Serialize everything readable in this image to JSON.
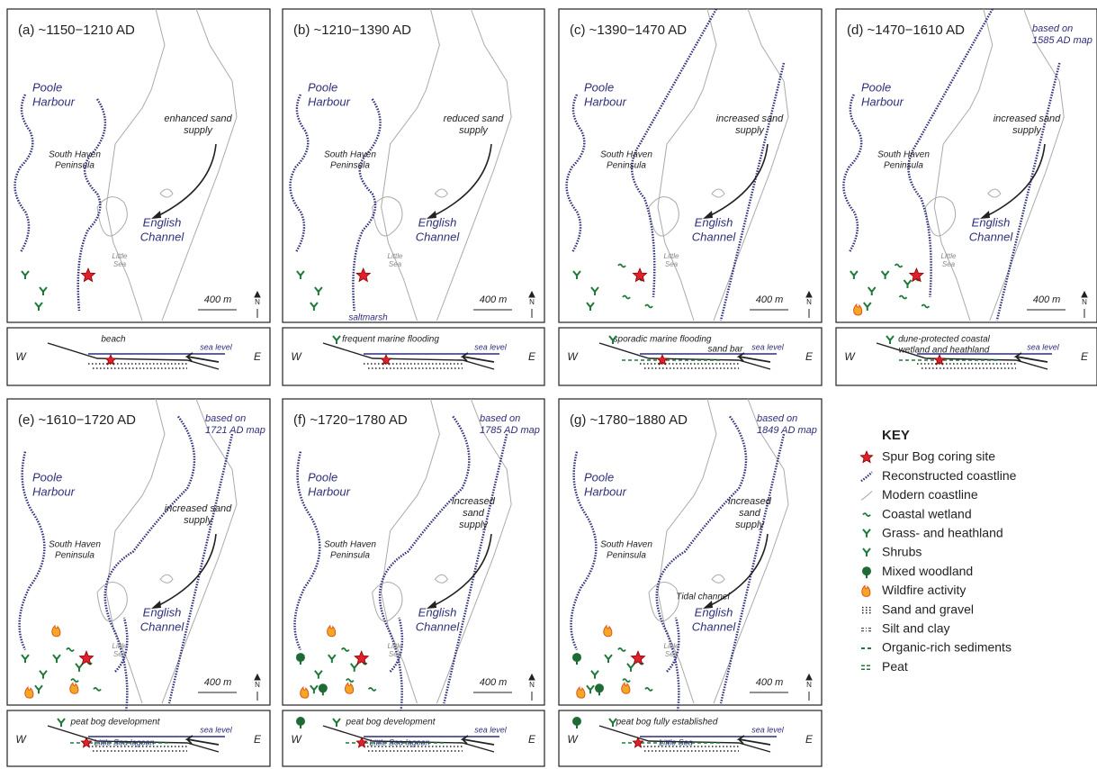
{
  "panels": [
    {
      "title": "(a) ~1150−1210 AD",
      "poole": [
        "Poole",
        "Harbour"
      ],
      "sand": [
        "enhanced sand",
        "supply"
      ],
      "peninsula": [
        "South Haven",
        "Peninsula"
      ],
      "channel": [
        "English",
        "Channel"
      ],
      "little_sea": [
        "Little",
        "Sea"
      ],
      "scale": "400 m",
      "north": "N",
      "section": {
        "west": "W",
        "east": "E",
        "notes": [
          "beach"
        ],
        "sea_level": "sea level"
      }
    },
    {
      "title": "(b) ~1210−1390 AD",
      "poole": [
        "Poole",
        "Harbour"
      ],
      "sand": [
        "reduced sand",
        "supply"
      ],
      "peninsula": [
        "South Haven",
        "Peninsula"
      ],
      "channel": [
        "English",
        "Channel"
      ],
      "little_sea": [
        "Little",
        "Sea"
      ],
      "scale": "400 m",
      "north": "N",
      "extra": "saltmarsh",
      "section": {
        "west": "W",
        "east": "E",
        "notes": [
          "frequent marine flooding"
        ],
        "sea_level": "sea level"
      }
    },
    {
      "title": "(c) ~1390−1470 AD",
      "poole": [
        "Poole",
        "Harbour"
      ],
      "sand": [
        "increased sand",
        "supply"
      ],
      "peninsula": [
        "South Haven",
        "Peninsula"
      ],
      "channel": [
        "English",
        "Channel"
      ],
      "little_sea": [
        "Little",
        "Sea"
      ],
      "scale": "400 m",
      "north": "N",
      "section": {
        "west": "W",
        "east": "E",
        "notes": [
          "sporadic marine flooding",
          "sand bar"
        ],
        "sea_level": "sea level"
      }
    },
    {
      "title": "(d) ~1470−1610 AD",
      "map_note": [
        "based on",
        "1585 AD map"
      ],
      "poole": [
        "Poole",
        "Harbour"
      ],
      "sand": [
        "increased sand",
        "supply"
      ],
      "peninsula": [
        "South Haven",
        "Peninsula"
      ],
      "channel": [
        "English",
        "Channel"
      ],
      "little_sea": [
        "Little",
        "Sea"
      ],
      "scale": "400 m",
      "north": "N",
      "section": {
        "west": "W",
        "east": "E",
        "notes": [
          "dune-protected coastal",
          "wetland and heathland"
        ],
        "sea_level": "sea level"
      }
    },
    {
      "title": "(e) ~1610−1720 AD",
      "map_note": [
        "based on",
        "1721 AD map"
      ],
      "poole": [
        "Poole",
        "Harbour"
      ],
      "sand": [
        "increased sand",
        "supply"
      ],
      "peninsula": [
        "South Haven",
        "Peninsula"
      ],
      "channel": [
        "English",
        "Channel"
      ],
      "little_sea": [
        "Little",
        "Sea"
      ],
      "scale": "400 m",
      "north": "N",
      "section": {
        "west": "W",
        "east": "E",
        "notes": [
          "peat bog development"
        ],
        "sea_level": "sea level",
        "lagoon": "Little Sea lagoon"
      }
    },
    {
      "title": "(f) ~1720−1780 AD",
      "map_note": [
        "based on",
        "1785 AD map"
      ],
      "poole": [
        "Poole",
        "Harbour"
      ],
      "sand": [
        "increased",
        "sand",
        "supply"
      ],
      "peninsula": [
        "South Haven",
        "Peninsula"
      ],
      "channel": [
        "English",
        "Channel"
      ],
      "little_sea": [
        "Little",
        "Sea"
      ],
      "scale": "400 m",
      "north": "N",
      "section": {
        "west": "W",
        "east": "E",
        "notes": [
          "peat bog development"
        ],
        "sea_level": "sea level",
        "lagoon": "Little Sea lagoon"
      }
    },
    {
      "title": "(g) ~1780−1880 AD",
      "map_note": [
        "based on",
        "1849 AD map"
      ],
      "poole": [
        "Poole",
        "Harbour"
      ],
      "sand": [
        "increased",
        "sand",
        "supply"
      ],
      "peninsula": [
        "South Haven",
        "Peninsula"
      ],
      "channel": [
        "English",
        "Channel"
      ],
      "little_sea": [
        "Little",
        "Sea"
      ],
      "scale": "400 m",
      "north": "N",
      "extra": "Tidal channel",
      "section": {
        "west": "W",
        "east": "E",
        "notes": [
          "peat bog fully established"
        ],
        "sea_level": "sea level",
        "lagoon": "Little Sea"
      }
    }
  ],
  "key": {
    "title": "KEY",
    "items": [
      "Spur Bog coring site",
      "Reconstructed coastline",
      "Modern coastline",
      "Coastal wetland",
      "Grass- and heathland",
      "Shrubs",
      "Mixed woodland",
      "Wildfire activity",
      "Sand and gravel",
      "Silt and clay",
      "Organic-rich sediments",
      "Peat"
    ]
  }
}
